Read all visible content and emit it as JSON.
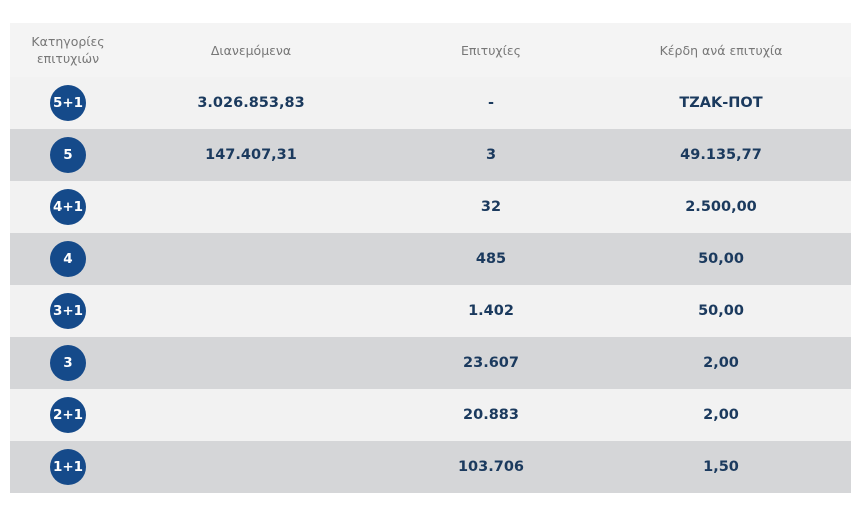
{
  "headers": {
    "category": "Κατηγορίες επιτυχιών",
    "distributed": "Διανεμόμενα",
    "winners": "Επιτυχίες",
    "prize": "Κέρδη ανά επιτυχία"
  },
  "rows": [
    {
      "category": "5+1",
      "distributed": "3.026.853,83",
      "winners": "-",
      "prize": "ΤΖΑΚ-ΠΟΤ"
    },
    {
      "category": "5",
      "distributed": "147.407,31",
      "winners": "3",
      "prize": "49.135,77"
    },
    {
      "category": "4+1",
      "distributed": "",
      "winners": "32",
      "prize": "2.500,00"
    },
    {
      "category": "4",
      "distributed": "",
      "winners": "485",
      "prize": "50,00"
    },
    {
      "category": "3+1",
      "distributed": "",
      "winners": "1.402",
      "prize": "50,00"
    },
    {
      "category": "3",
      "distributed": "",
      "winners": "23.607",
      "prize": "2,00"
    },
    {
      "category": "2+1",
      "distributed": "",
      "winners": "20.883",
      "prize": "2,00"
    },
    {
      "category": "1+1",
      "distributed": "",
      "winners": "103.706",
      "prize": "1,50"
    }
  ],
  "colors": {
    "badge": "#154a8a",
    "text": "#1b3a5e",
    "row_light": "#f2f2f2",
    "row_dark": "#d5d6d8"
  }
}
